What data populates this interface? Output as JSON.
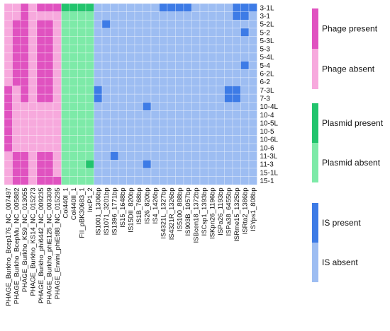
{
  "chart_data": {
    "type": "heatmap",
    "rows": [
      "3-1L",
      "3-1",
      "5-2L",
      "5-2",
      "5-3L",
      "5-3",
      "5-4L",
      "5-4",
      "6-2L",
      "6-2",
      "7-3L",
      "7-3",
      "10-4L",
      "10-4",
      "10-5L",
      "10-5",
      "10-6L",
      "10-6",
      "11-3L",
      "11-3",
      "15-1L",
      "15-1"
    ],
    "columns": [
      {
        "label": "PHAGE_Burkho_Bcep176_NC_007497",
        "group": "phage"
      },
      {
        "label": "PHAGE_Burkho_BcepMu_NC_005882",
        "group": "phage"
      },
      {
        "label": "PHAGE_Burkho_KS9_NC_013055",
        "group": "phage"
      },
      {
        "label": "PHAGE_Burkho_KS14_NC_015273",
        "group": "phage"
      },
      {
        "label": "PHAGE_Burkho_phi6442_NC_009235",
        "group": "phage"
      },
      {
        "label": "PHAGE_Burkho_phiE125_NC_003309",
        "group": "phage"
      },
      {
        "label": "PHAGE_Erwini_phiEt88_NC_015295",
        "group": "phage"
      },
      {
        "label": "Col440I_1",
        "group": "plasmid"
      },
      {
        "label": "Col440II_1",
        "group": "plasmid"
      },
      {
        "label": "FII_pBK30683_1",
        "group": "plasmid"
      },
      {
        "label": "IncP1_2",
        "group": "plasmid"
      },
      {
        "label": "IS1001_1306bp",
        "group": "is"
      },
      {
        "label": "IS1071_3201bp",
        "group": "is"
      },
      {
        "label": "IS1396_1771bp",
        "group": "is"
      },
      {
        "label": "IS15_1648bp",
        "group": "is"
      },
      {
        "label": "IS15DII_820bp",
        "group": "is"
      },
      {
        "label": "IS1B_768bp",
        "group": "is"
      },
      {
        "label": "IS26_820bp",
        "group": "is"
      },
      {
        "label": "IS4_1426bp",
        "group": "is"
      },
      {
        "label": "IS4321L_1327bp",
        "group": "is"
      },
      {
        "label": "IS4321R_1326bp",
        "group": "is"
      },
      {
        "label": "IS5100_888bp",
        "group": "is"
      },
      {
        "label": "IS903B_1057bp",
        "group": "is"
      },
      {
        "label": "ISBcen18_1372bp",
        "group": "is"
      },
      {
        "label": "ISCsp1_1393bp",
        "group": "is"
      },
      {
        "label": "ISKpn26_1196bp",
        "group": "is"
      },
      {
        "label": "ISPa26_1193bp",
        "group": "is"
      },
      {
        "label": "ISPa38_6455bp",
        "group": "is"
      },
      {
        "label": "ISRme15_1325bp",
        "group": "is"
      },
      {
        "label": "ISRta2_1386bp",
        "group": "is"
      },
      {
        "label": "ISYps1_808bp",
        "group": "is"
      }
    ],
    "values": [
      [
        0,
        0,
        1,
        0,
        1,
        1,
        1,
        1,
        1,
        1,
        1,
        0,
        0,
        0,
        0,
        0,
        0,
        0,
        0,
        1,
        1,
        1,
        1,
        0,
        0,
        0,
        0,
        0,
        1,
        1,
        1
      ],
      [
        0,
        0,
        1,
        0,
        0,
        0,
        0,
        0,
        0,
        0,
        0,
        0,
        0,
        0,
        0,
        0,
        0,
        0,
        0,
        0,
        0,
        0,
        0,
        0,
        0,
        0,
        0,
        0,
        1,
        1,
        0
      ],
      [
        0,
        1,
        1,
        0,
        1,
        1,
        0,
        0,
        0,
        0,
        0,
        0,
        1,
        0,
        0,
        0,
        0,
        0,
        0,
        0,
        0,
        0,
        0,
        0,
        0,
        0,
        0,
        0,
        0,
        0,
        0
      ],
      [
        0,
        1,
        1,
        0,
        1,
        1,
        0,
        0,
        0,
        0,
        0,
        0,
        0,
        0,
        0,
        0,
        0,
        0,
        0,
        0,
        0,
        0,
        0,
        0,
        0,
        0,
        0,
        0,
        0,
        1,
        0
      ],
      [
        0,
        1,
        1,
        0,
        1,
        1,
        0,
        0,
        0,
        0,
        0,
        0,
        0,
        0,
        0,
        0,
        0,
        0,
        0,
        0,
        0,
        0,
        0,
        0,
        0,
        0,
        0,
        0,
        0,
        0,
        0
      ],
      [
        0,
        1,
        1,
        0,
        1,
        1,
        0,
        0,
        0,
        0,
        0,
        0,
        0,
        0,
        0,
        0,
        0,
        0,
        0,
        0,
        0,
        0,
        0,
        0,
        0,
        0,
        0,
        0,
        0,
        0,
        0
      ],
      [
        0,
        1,
        1,
        0,
        1,
        1,
        0,
        0,
        0,
        0,
        0,
        0,
        0,
        0,
        0,
        0,
        0,
        0,
        0,
        0,
        0,
        0,
        0,
        0,
        0,
        0,
        0,
        0,
        0,
        0,
        0
      ],
      [
        0,
        1,
        1,
        0,
        1,
        1,
        0,
        0,
        0,
        0,
        0,
        0,
        0,
        0,
        0,
        0,
        0,
        0,
        0,
        0,
        0,
        0,
        0,
        0,
        0,
        0,
        0,
        0,
        0,
        1,
        0
      ],
      [
        0,
        1,
        1,
        0,
        1,
        1,
        0,
        0,
        0,
        0,
        0,
        0,
        0,
        0,
        0,
        0,
        0,
        0,
        0,
        0,
        0,
        0,
        0,
        0,
        0,
        0,
        0,
        0,
        0,
        0,
        0
      ],
      [
        0,
        1,
        1,
        0,
        1,
        1,
        0,
        0,
        0,
        0,
        0,
        0,
        0,
        0,
        0,
        0,
        0,
        0,
        0,
        0,
        0,
        0,
        0,
        0,
        0,
        0,
        0,
        0,
        0,
        0,
        0
      ],
      [
        1,
        0,
        1,
        0,
        1,
        1,
        0,
        0,
        0,
        0,
        0,
        1,
        0,
        0,
        0,
        0,
        0,
        0,
        0,
        0,
        0,
        0,
        0,
        0,
        0,
        0,
        0,
        1,
        1,
        0,
        0
      ],
      [
        1,
        0,
        1,
        0,
        1,
        1,
        0,
        0,
        0,
        0,
        0,
        1,
        0,
        0,
        0,
        0,
        0,
        0,
        0,
        0,
        0,
        0,
        0,
        0,
        0,
        0,
        0,
        1,
        1,
        0,
        0
      ],
      [
        1,
        0,
        0,
        0,
        0,
        0,
        0,
        0,
        0,
        0,
        0,
        0,
        0,
        0,
        0,
        0,
        0,
        1,
        0,
        0,
        0,
        0,
        0,
        0,
        0,
        0,
        0,
        0,
        0,
        0,
        0
      ],
      [
        1,
        0,
        0,
        0,
        0,
        0,
        0,
        0,
        0,
        0,
        0,
        0,
        0,
        0,
        0,
        0,
        0,
        0,
        0,
        0,
        0,
        0,
        0,
        0,
        0,
        0,
        0,
        0,
        0,
        0,
        0
      ],
      [
        1,
        0,
        0,
        0,
        0,
        0,
        0,
        0,
        0,
        0,
        0,
        0,
        0,
        0,
        0,
        0,
        0,
        0,
        0,
        0,
        0,
        0,
        0,
        0,
        0,
        0,
        0,
        0,
        0,
        0,
        0
      ],
      [
        1,
        0,
        0,
        0,
        0,
        0,
        0,
        0,
        0,
        0,
        0,
        0,
        0,
        0,
        0,
        0,
        0,
        0,
        0,
        0,
        0,
        0,
        0,
        0,
        0,
        0,
        0,
        0,
        0,
        0,
        0
      ],
      [
        1,
        0,
        0,
        0,
        0,
        0,
        0,
        0,
        0,
        0,
        0,
        0,
        0,
        0,
        0,
        0,
        0,
        0,
        0,
        0,
        0,
        0,
        0,
        0,
        0,
        0,
        0,
        0,
        0,
        0,
        0
      ],
      [
        1,
        0,
        0,
        0,
        0,
        0,
        0,
        0,
        0,
        0,
        0,
        0,
        0,
        0,
        0,
        0,
        0,
        0,
        0,
        0,
        0,
        0,
        0,
        0,
        0,
        0,
        0,
        0,
        0,
        0,
        0
      ],
      [
        0,
        1,
        1,
        0,
        1,
        1,
        0,
        0,
        0,
        0,
        0,
        0,
        0,
        1,
        0,
        0,
        0,
        0,
        0,
        0,
        0,
        0,
        0,
        0,
        0,
        0,
        0,
        0,
        0,
        0,
        0
      ],
      [
        0,
        1,
        1,
        0,
        1,
        1,
        0,
        0,
        0,
        0,
        1,
        0,
        0,
        0,
        0,
        0,
        0,
        1,
        0,
        0,
        0,
        0,
        0,
        0,
        0,
        0,
        0,
        0,
        0,
        0,
        0
      ],
      [
        0,
        1,
        1,
        0,
        1,
        1,
        0,
        0,
        0,
        0,
        0,
        0,
        0,
        0,
        0,
        0,
        0,
        0,
        0,
        0,
        0,
        0,
        0,
        0,
        0,
        0,
        0,
        0,
        0,
        0,
        0
      ],
      [
        0,
        1,
        1,
        0,
        1,
        1,
        1,
        0,
        0,
        0,
        0,
        0,
        0,
        0,
        0,
        0,
        0,
        0,
        0,
        0,
        0,
        0,
        0,
        0,
        0,
        0,
        0,
        0,
        0,
        0,
        0
      ]
    ],
    "colors": {
      "phage": {
        "present": "#e052c0",
        "absent": "#f7a9dd"
      },
      "plasmid": {
        "present": "#22c46d",
        "absent": "#7deaa8"
      },
      "is": {
        "present": "#3d7be6",
        "absent": "#9dbdf2"
      }
    },
    "legend": [
      {
        "group": "phage",
        "items": [
          {
            "label": "Phage present",
            "state": "present"
          },
          {
            "label": "Phage absent",
            "state": "absent"
          }
        ]
      },
      {
        "group": "plasmid",
        "items": [
          {
            "label": "Plasmid present",
            "state": "present"
          },
          {
            "label": "Plasmid absent",
            "state": "absent"
          }
        ]
      },
      {
        "group": "is",
        "items": [
          {
            "label": "IS present",
            "state": "present"
          },
          {
            "label": "IS absent",
            "state": "absent"
          }
        ]
      }
    ],
    "legend_position": "right"
  }
}
